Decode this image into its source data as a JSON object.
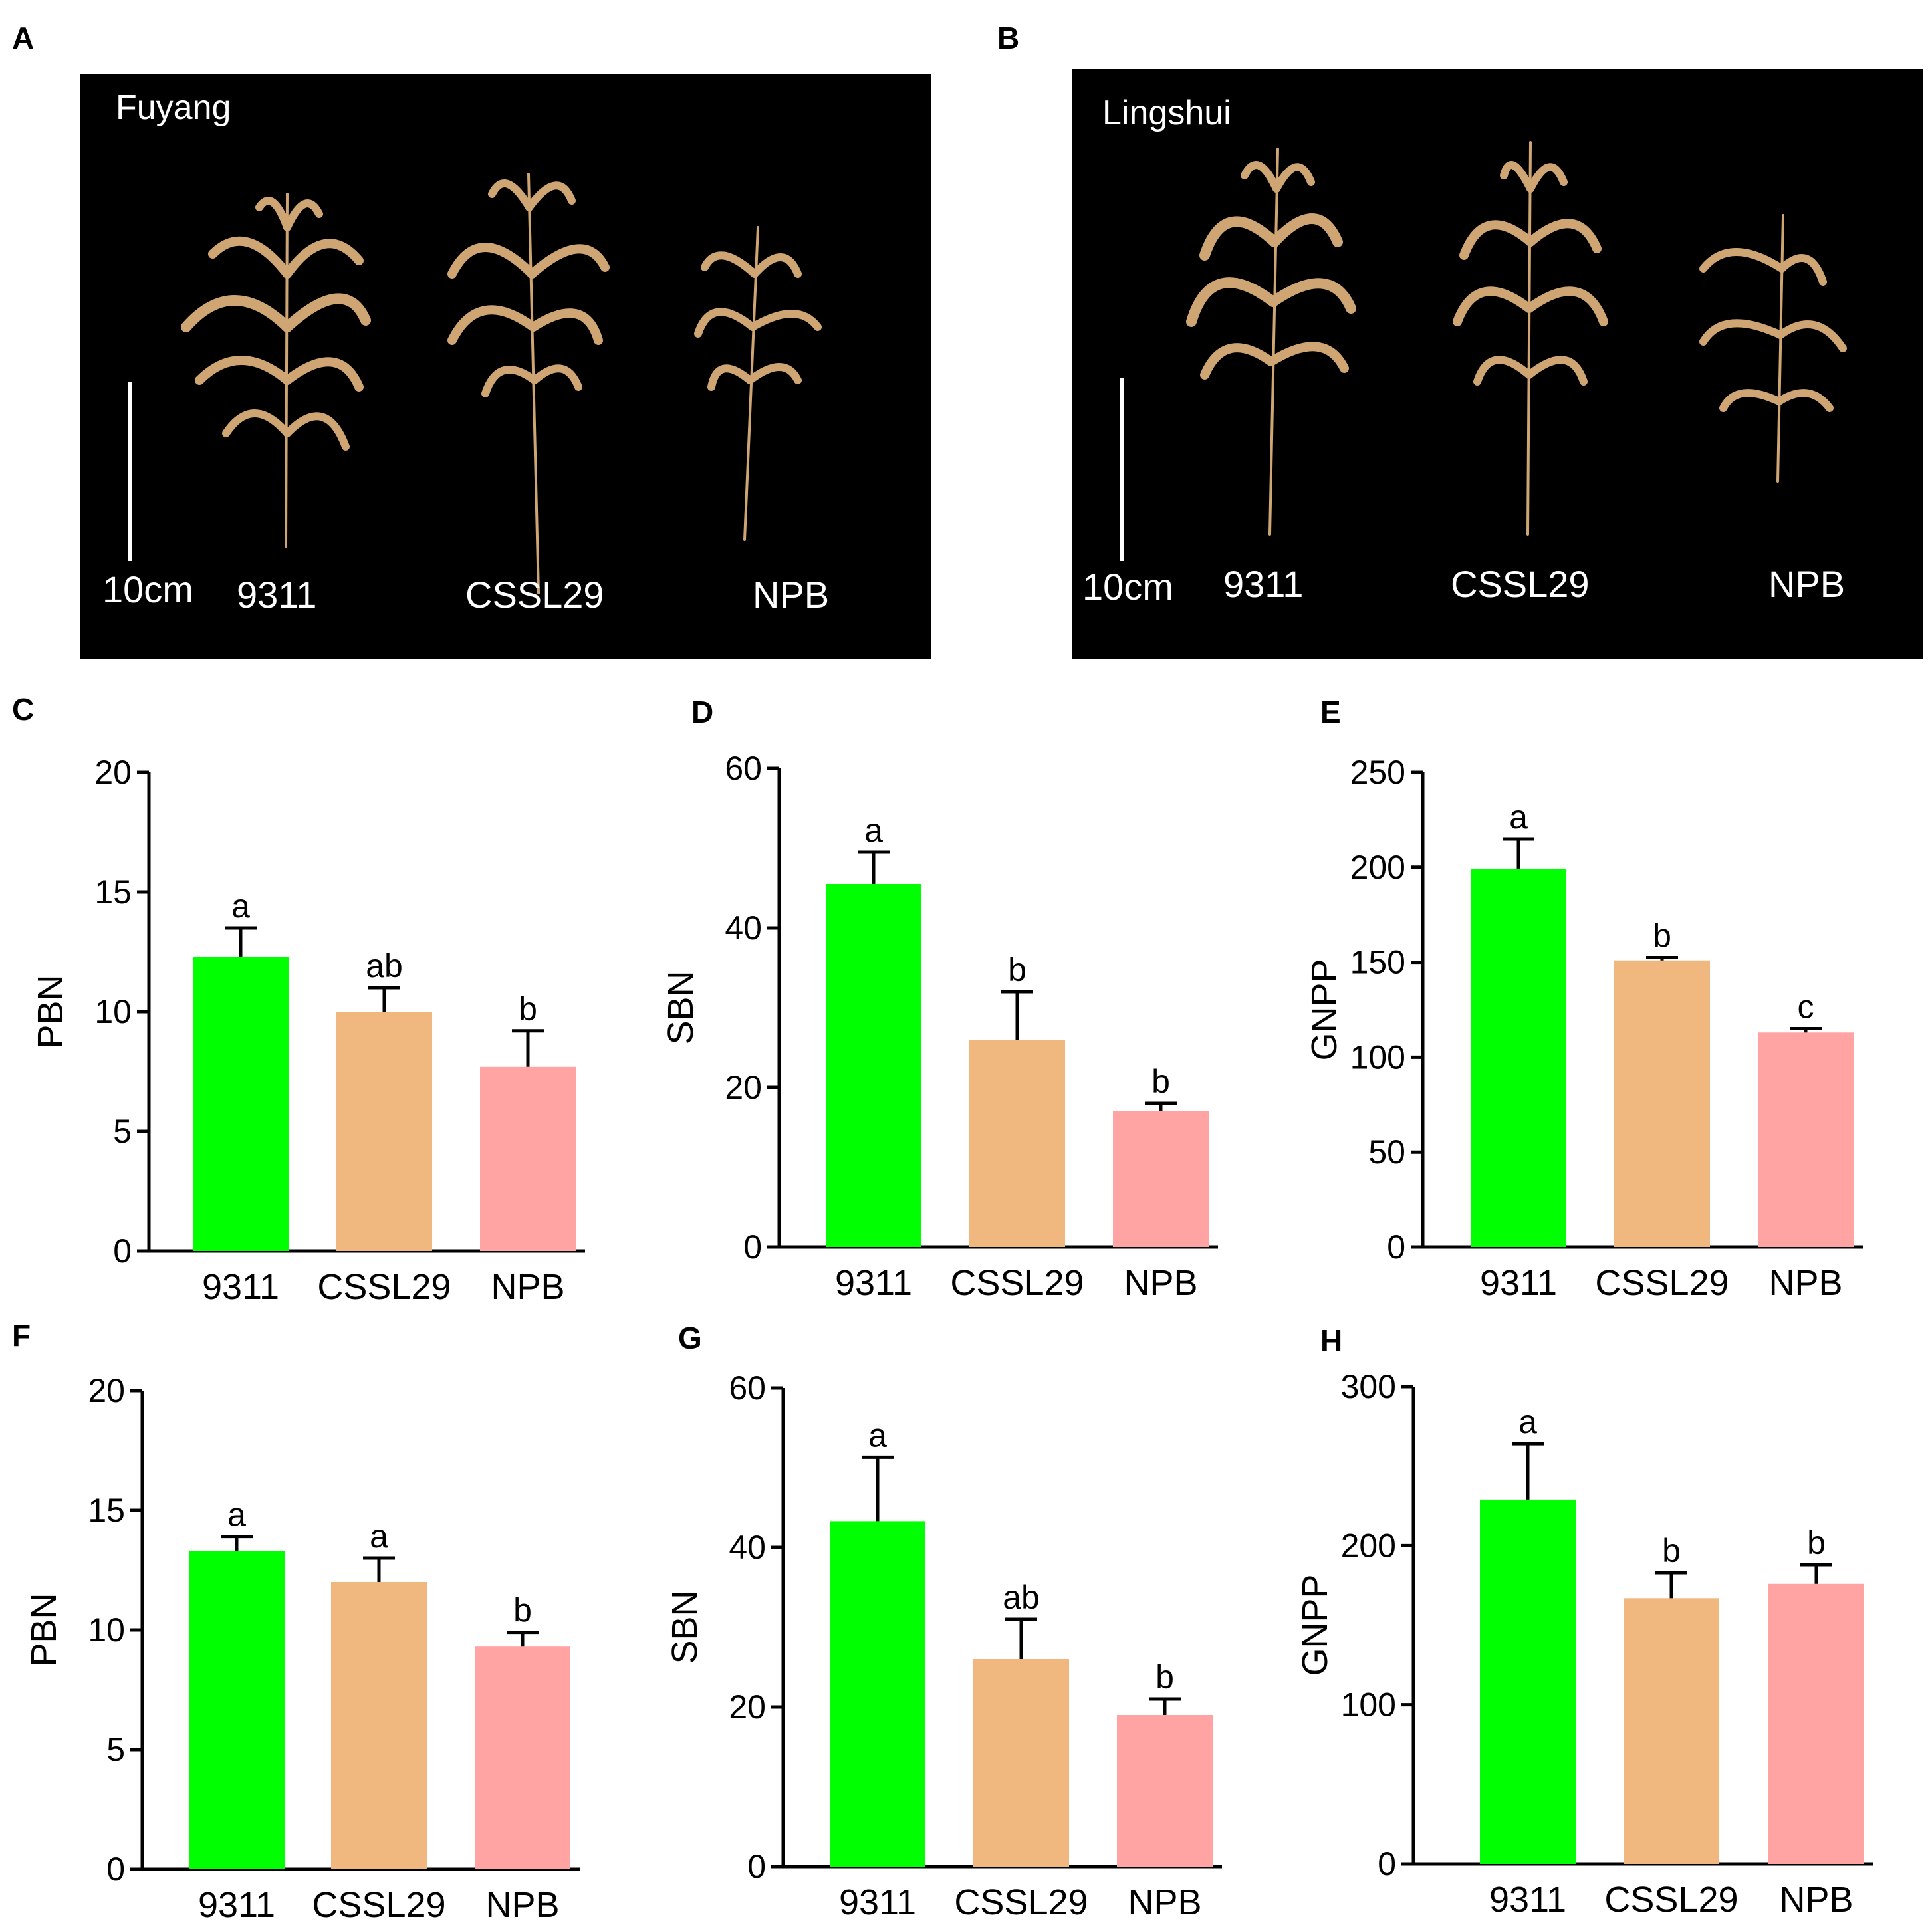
{
  "photos": [
    {
      "panel": "A",
      "location": "Fuyang",
      "scale_label": "10cm",
      "labels": [
        "9311",
        "CSSL29",
        "NPB"
      ]
    },
    {
      "panel": "B",
      "location": "Lingshui",
      "scale_label": "10cm",
      "labels": [
        "9311",
        "CSSL29",
        "NPB"
      ]
    }
  ],
  "colors": {
    "9311": "#00ff00",
    "CSSL29": "#f0b77f",
    "NPB": "#ffa3a3"
  },
  "chart_data": [
    {
      "panel": "C",
      "type": "bar",
      "ylabel": "PBN",
      "categories": [
        "9311",
        "CSSL29",
        "NPB"
      ],
      "values": [
        12.3,
        10.0,
        7.7
      ],
      "errors": [
        1.2,
        1.0,
        1.5
      ],
      "letters": [
        "a",
        "ab",
        "b"
      ],
      "ylim": [
        0,
        20
      ],
      "yticks": [
        0,
        5,
        10,
        15,
        20
      ]
    },
    {
      "panel": "D",
      "type": "bar",
      "ylabel": "SBN",
      "categories": [
        "9311",
        "CSSL29",
        "NPB"
      ],
      "values": [
        45.5,
        26.0,
        17.0
      ],
      "errors": [
        4.0,
        6.0,
        1.0
      ],
      "letters": [
        "a",
        "b",
        "b"
      ],
      "ylim": [
        0,
        60
      ],
      "yticks": [
        0,
        20,
        40,
        60
      ]
    },
    {
      "panel": "E",
      "type": "bar",
      "ylabel": "GNPP",
      "categories": [
        "9311",
        "CSSL29",
        "NPB"
      ],
      "values": [
        199,
        151,
        113
      ],
      "errors": [
        16,
        1.5,
        2
      ],
      "letters": [
        "a",
        "b",
        "c"
      ],
      "ylim": [
        0,
        250
      ],
      "yticks": [
        0,
        50,
        100,
        150,
        200,
        250
      ]
    },
    {
      "panel": "F",
      "type": "bar",
      "ylabel": "PBN",
      "categories": [
        "9311",
        "CSSL29",
        "NPB"
      ],
      "values": [
        13.3,
        12.0,
        9.3
      ],
      "errors": [
        0.6,
        1.0,
        0.6
      ],
      "letters": [
        "a",
        "a",
        "b"
      ],
      "ylim": [
        0,
        20
      ],
      "yticks": [
        0,
        5,
        10,
        15,
        20
      ]
    },
    {
      "panel": "G",
      "type": "bar",
      "ylabel": "SBN",
      "categories": [
        "9311",
        "CSSL29",
        "NPB"
      ],
      "values": [
        43.3,
        26.0,
        19.0
      ],
      "errors": [
        8.0,
        5.0,
        2.0
      ],
      "letters": [
        "a",
        "ab",
        "b"
      ],
      "ylim": [
        0,
        60
      ],
      "yticks": [
        0,
        20,
        40,
        60
      ]
    },
    {
      "panel": "H",
      "type": "bar",
      "ylabel": "GNPP",
      "categories": [
        "9311",
        "CSSL29",
        "NPB"
      ],
      "values": [
        229,
        167,
        176
      ],
      "errors": [
        35,
        16,
        12
      ],
      "letters": [
        "a",
        "b",
        "b"
      ],
      "ylim": [
        0,
        300
      ],
      "yticks": [
        0,
        100,
        200,
        300
      ]
    }
  ]
}
